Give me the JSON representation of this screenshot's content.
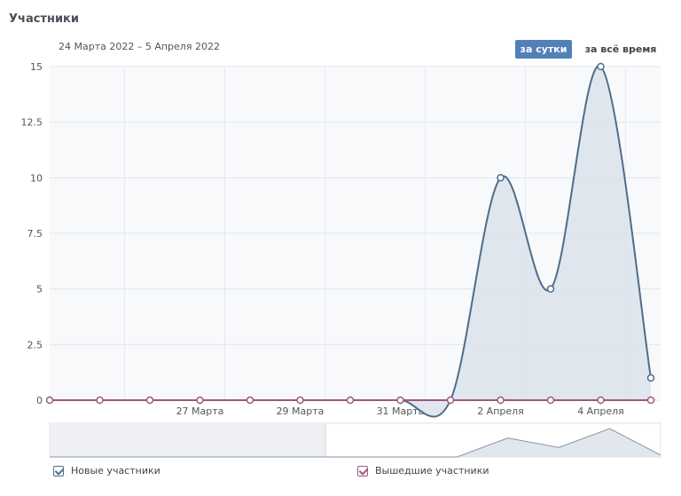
{
  "header": {
    "title": "Участники",
    "date_range": "24 Марта 2022 – 5 Апреля 2022",
    "button_day": "за сутки",
    "button_all": "за всё время"
  },
  "colors": {
    "new": "#4e6d8c",
    "left": "#a0557f",
    "fill": "#dde3ec",
    "active_button": "#5181b8"
  },
  "legend": [
    {
      "label": "Новые участники",
      "checked": true
    },
    {
      "label": "Вышедшие участники",
      "checked": true
    }
  ],
  "chart_data": {
    "type": "area",
    "title": "",
    "xlabel": "",
    "ylabel": "",
    "ylim": [
      0,
      15
    ],
    "y_ticks": [
      "0",
      "2.5",
      "5",
      "7.5",
      "10",
      "12.5",
      "15"
    ],
    "x_tick_labels": [
      "27 Марта",
      "29 Марта",
      "31 Марта",
      "2 Апреля",
      "4 Апреля"
    ],
    "x": [
      "24 Марта",
      "25 Марта",
      "26 Марта",
      "27 Марта",
      "28 Марта",
      "29 Марта",
      "30 Марта",
      "31 Марта",
      "1 Апреля",
      "2 Апреля",
      "3 Апреля",
      "4 Апреля",
      "5 Апреля"
    ],
    "series": [
      {
        "name": "Новые участники",
        "values": [
          0,
          0,
          0,
          0,
          0,
          0,
          0,
          0,
          0,
          10,
          5,
          15,
          1
        ]
      },
      {
        "name": "Вышедшие участники",
        "values": [
          0,
          0,
          0,
          0,
          0,
          0,
          0,
          0,
          0,
          0,
          0,
          0,
          0
        ]
      }
    ],
    "grid": true,
    "legend_position": "bottom"
  }
}
